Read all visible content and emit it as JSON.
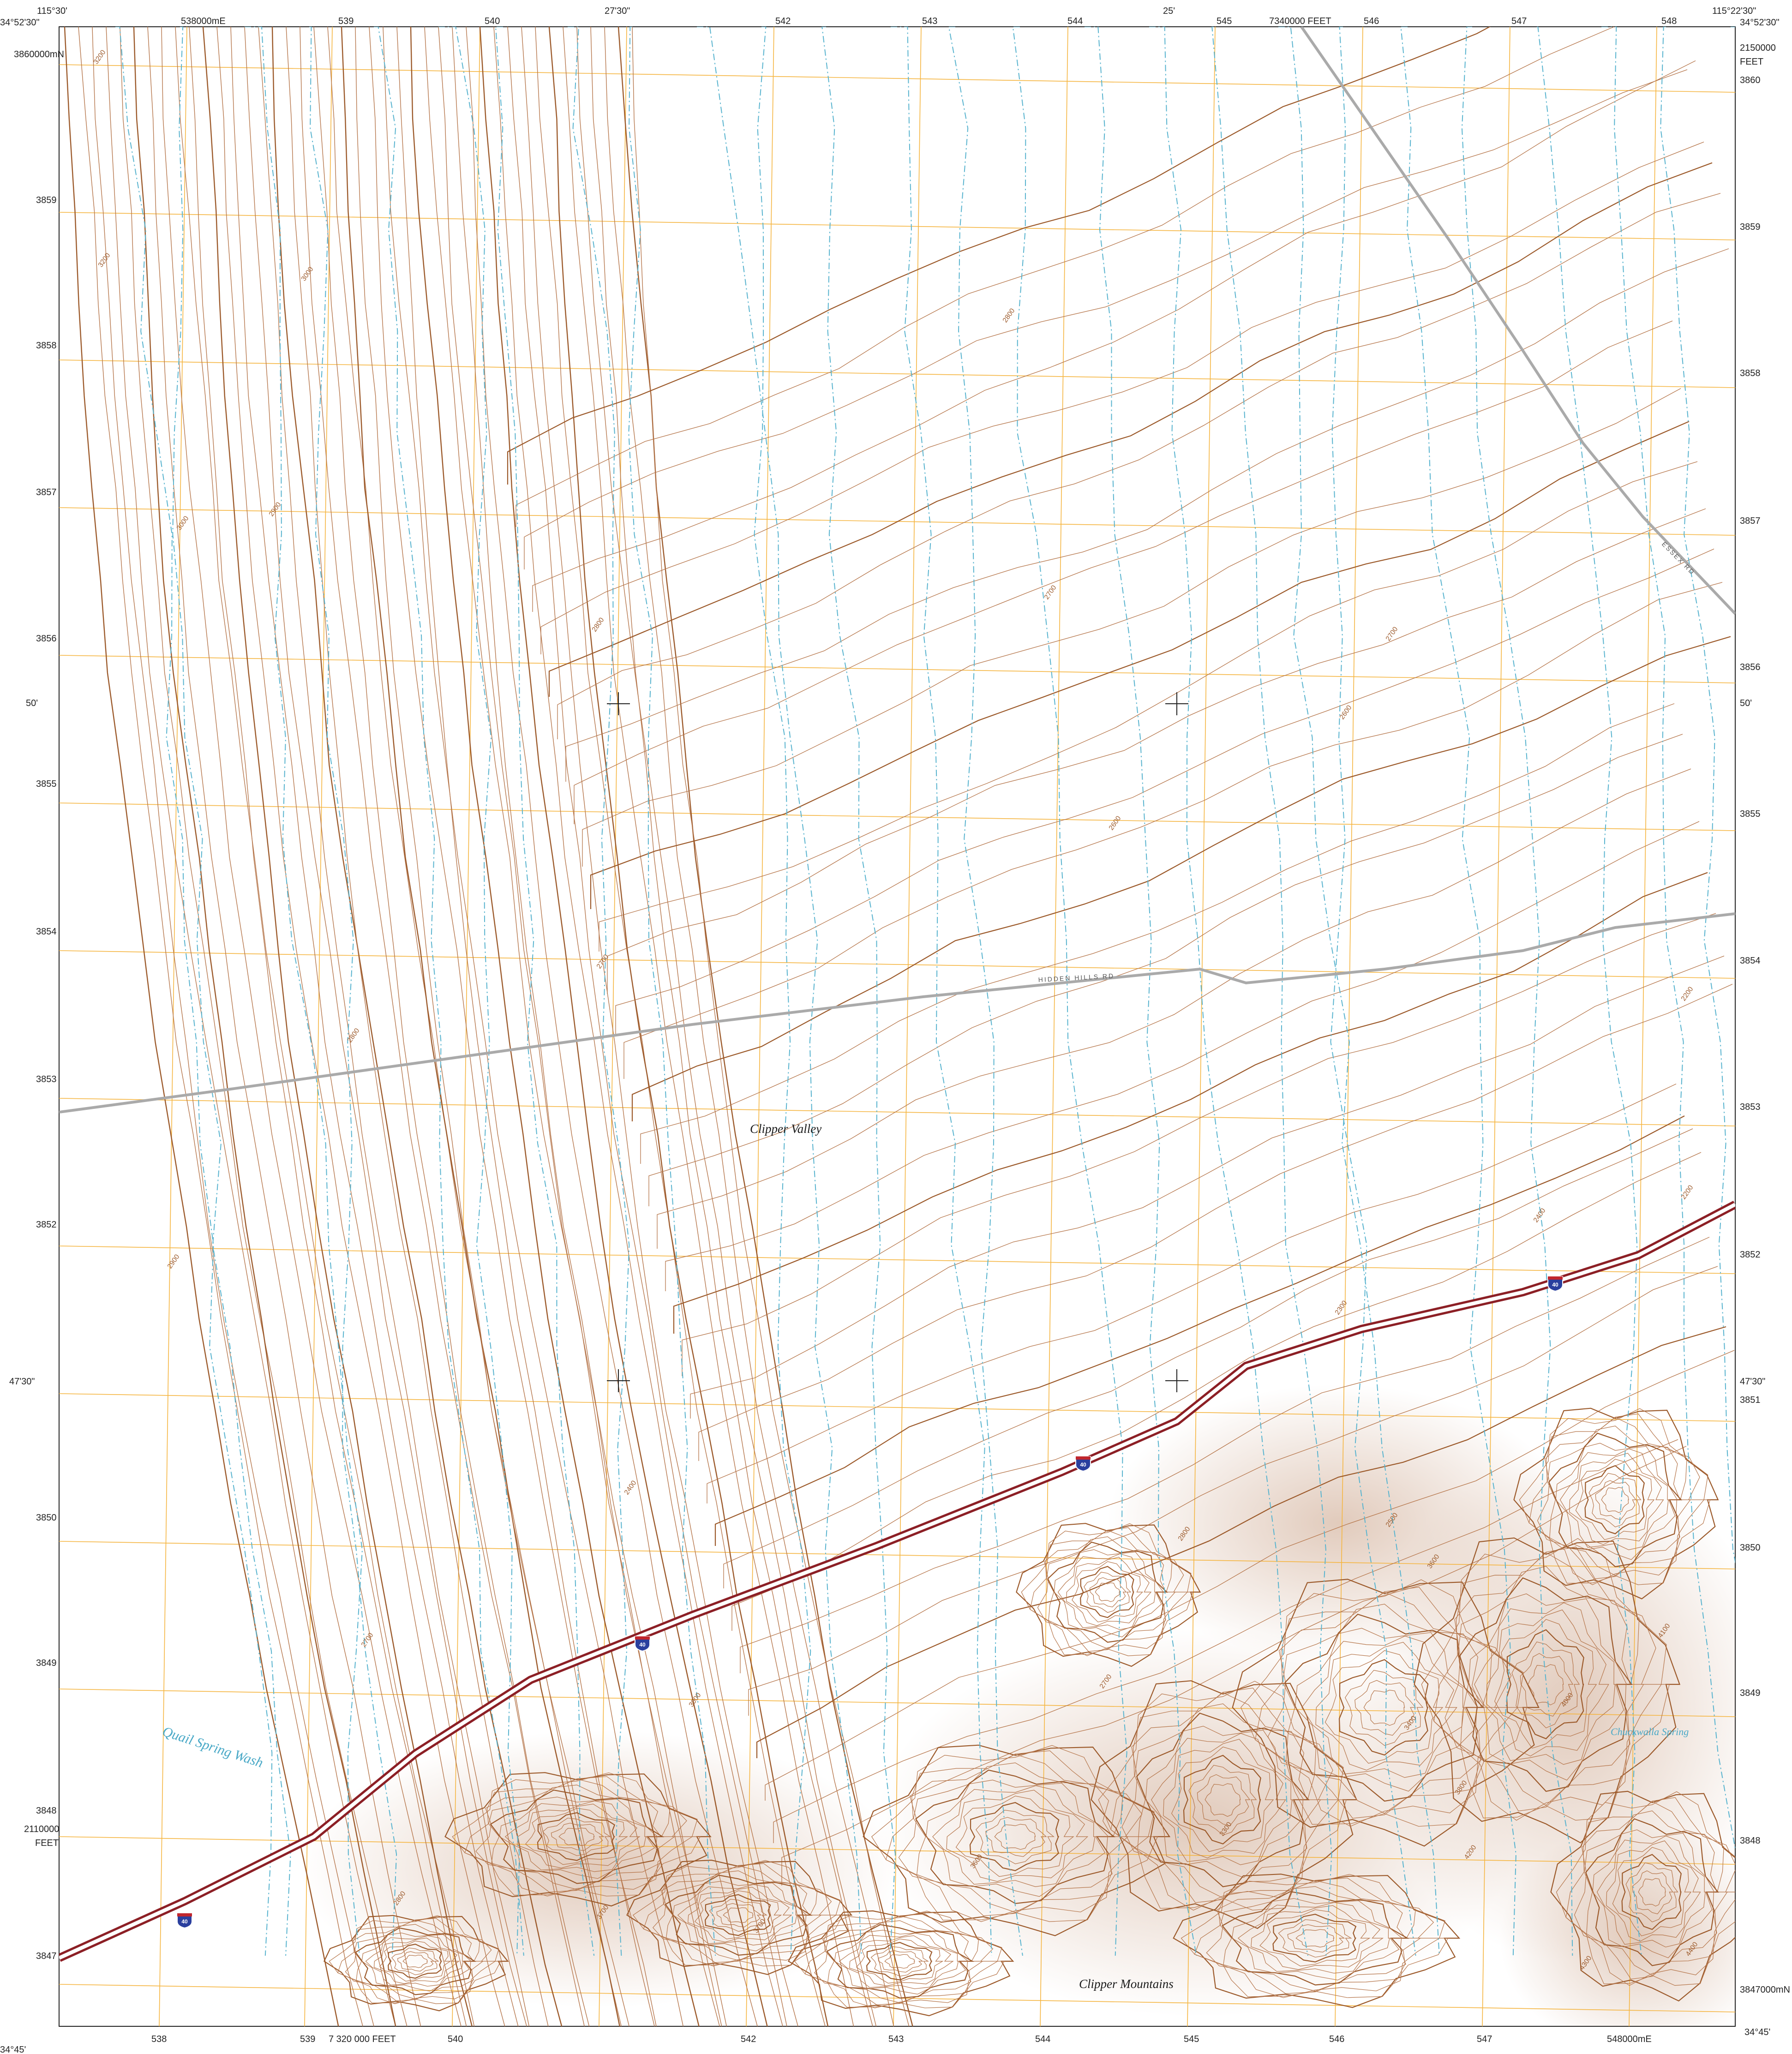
{
  "map": {
    "corner_labels": {
      "top_left_lon": "115°30'",
      "top_left_lat": "34°52'30\"",
      "top_right_lon": "115°22'30\"",
      "top_right_lat": "34°52'30\"",
      "bottom_left_lat": "34°45'",
      "bottom_right_lat": "34°45'"
    },
    "top_ticks": {
      "lon_mid": "27'30\"",
      "lon_east": "25'",
      "feet_top": "7340000 FEET",
      "utm_first": "538000mE",
      "utm": [
        "539",
        "540",
        "542",
        "543",
        "544",
        "545",
        "546",
        "547",
        "548"
      ]
    },
    "bottom_ticks": {
      "feet_bottom": "7 320 000 FEET",
      "utm_first": "538",
      "utm": [
        "539",
        "540",
        "542",
        "543",
        "544",
        "545",
        "546",
        "547"
      ],
      "utm_last": "548000mE"
    },
    "left_ticks": {
      "utm_first": "3860000mN",
      "utm": [
        "3859",
        "3858",
        "3857",
        "3856",
        "3855",
        "3854",
        "3853",
        "3852",
        "3850",
        "3849",
        "3848",
        "3847"
      ],
      "lat_50": "50'",
      "lat_4730": "47'30\"",
      "feet_value": "2110000",
      "feet_unit": "FEET"
    },
    "right_ticks": {
      "feet_value": "2150000",
      "feet_unit": "FEET",
      "utm": [
        "3860",
        "3859",
        "3858",
        "3857",
        "3856",
        "3855",
        "3854",
        "3853",
        "3852",
        "3851",
        "3850",
        "3849",
        "3848"
      ],
      "utm_last": "3847000mN",
      "lat_50": "50'",
      "lat_4730": "47'30\""
    },
    "features": {
      "clipper_valley": "Clipper Valley",
      "clipper_mountains": "Clipper Mountains",
      "quail_spring_wash": "Quail Spring Wash",
      "spring": "Chuckwalla Spring"
    },
    "roads": {
      "hidden_hills": "HIDDEN HILLS RD",
      "essex": "ESSEX RD"
    },
    "highway_shield": "40",
    "contour_labels": [
      "3200",
      "3000",
      "2900",
      "2800",
      "2700",
      "2600",
      "2500",
      "2400",
      "2300",
      "2200",
      "3300",
      "3400",
      "3600",
      "3700",
      "3800",
      "4000",
      "4100",
      "4200",
      "4300",
      "4400"
    ],
    "colors": {
      "contour": "#b5754a",
      "contour_index": "#9c5a2b",
      "grid": "#f5b540",
      "drainage": "#5ab4cf",
      "highway": "#8c1f25",
      "road": "#aaaaaa",
      "relief": "#c9a085"
    }
  }
}
